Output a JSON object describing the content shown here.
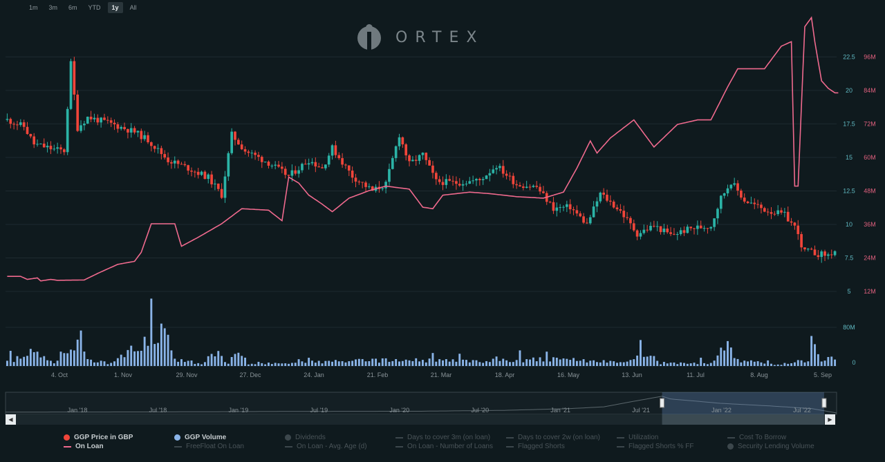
{
  "range_buttons": [
    "1m",
    "3m",
    "6m",
    "YTD",
    "1y",
    "All"
  ],
  "active_range": "1y",
  "logo_text": "ORTEX",
  "colors": {
    "up": "#2bb3a6",
    "down": "#f0453a",
    "on_loan": "#f06a8e",
    "volume": "#8ab4e8",
    "grid": "#1e2b30",
    "axis_left": "#5fb7c0",
    "axis_right": "#e0607e"
  },
  "chart_data": {
    "type": "line",
    "price_axis": {
      "ticks": [
        "5",
        "7.5",
        "10",
        "12.5",
        "15",
        "17.5",
        "20",
        "22.5"
      ],
      "ylim": [
        5,
        22.5
      ]
    },
    "on_loan_axis": {
      "ticks": [
        "12M",
        "24M",
        "36M",
        "48M",
        "60M",
        "72M",
        "84M",
        "96M"
      ],
      "ylim": [
        12000000,
        96000000
      ]
    },
    "volume_axis": {
      "ticks": [
        "0",
        "80M"
      ],
      "ylim": [
        0,
        80000000
      ]
    },
    "x_ticks": [
      "4. Oct",
      "1. Nov",
      "29. Nov",
      "27. Dec",
      "24. Jan",
      "21. Feb",
      "21. Mar",
      "18. Apr",
      "16. May",
      "13. Jun",
      "11. Jul",
      "8. Aug",
      "5. Sep"
    ],
    "navigator_ticks": [
      "Jan '18",
      "Jul '18",
      "Jan '19",
      "Jul '19",
      "Jan '20",
      "Jul '20",
      "Jan '21",
      "Jul '21",
      "Jan '22",
      "Jul '22"
    ],
    "price_waypoints": [
      [
        0,
        17.8
      ],
      [
        5,
        17.3
      ],
      [
        8,
        16.0
      ],
      [
        14,
        15.6
      ],
      [
        17,
        15.5
      ],
      [
        19,
        22.0
      ],
      [
        21,
        17.2
      ],
      [
        24,
        18.0
      ],
      [
        30,
        17.6
      ],
      [
        38,
        16.9
      ],
      [
        42,
        16.3
      ],
      [
        48,
        14.8
      ],
      [
        54,
        14.2
      ],
      [
        60,
        13.5
      ],
      [
        64,
        12.2
      ],
      [
        67,
        16.7
      ],
      [
        71,
        15.5
      ],
      [
        78,
        14.6
      ],
      [
        84,
        13.6
      ],
      [
        90,
        14.8
      ],
      [
        94,
        14.2
      ],
      [
        97,
        15.7
      ],
      [
        103,
        13.6
      ],
      [
        109,
        12.5
      ],
      [
        113,
        13.0
      ],
      [
        117,
        16.7
      ],
      [
        120,
        14.5
      ],
      [
        124,
        15.2
      ],
      [
        128,
        13.2
      ],
      [
        134,
        13.1
      ],
      [
        141,
        13.3
      ],
      [
        146,
        14.4
      ],
      [
        152,
        13.0
      ],
      [
        158,
        12.8
      ],
      [
        163,
        11.2
      ],
      [
        168,
        11.3
      ],
      [
        173,
        10.0
      ],
      [
        177,
        12.3
      ],
      [
        183,
        11.0
      ],
      [
        188,
        9.3
      ],
      [
        193,
        9.9
      ],
      [
        198,
        9.2
      ],
      [
        204,
        9.7
      ],
      [
        210,
        9.9
      ],
      [
        213,
        12.0
      ],
      [
        216,
        13.2
      ],
      [
        220,
        11.8
      ],
      [
        226,
        11.1
      ],
      [
        232,
        10.7
      ],
      [
        236,
        9.5
      ],
      [
        237,
        8.1
      ],
      [
        242,
        7.8
      ],
      [
        245,
        7.7
      ],
      [
        247,
        8.0
      ]
    ],
    "volume_waypoints": [
      [
        0,
        8
      ],
      [
        8,
        28
      ],
      [
        14,
        6
      ],
      [
        20,
        36
      ],
      [
        22,
        55
      ],
      [
        24,
        14
      ],
      [
        30,
        6
      ],
      [
        48,
        70
      ],
      [
        50,
        14
      ],
      [
        58,
        5
      ],
      [
        62,
        28
      ],
      [
        66,
        5
      ],
      [
        69,
        30
      ],
      [
        72,
        4
      ],
      [
        100,
        10
      ],
      [
        117,
        12
      ],
      [
        140,
        10
      ],
      [
        160,
        14
      ],
      [
        185,
        8
      ],
      [
        193,
        30
      ],
      [
        195,
        5
      ],
      [
        210,
        6
      ],
      [
        215,
        48
      ],
      [
        217,
        12
      ],
      [
        230,
        3
      ],
      [
        239,
        10
      ],
      [
        240,
        92
      ],
      [
        242,
        24
      ],
      [
        244,
        4
      ],
      [
        247,
        14
      ]
    ],
    "on_loan_waypoints": [
      [
        0,
        17.0
      ],
      [
        4,
        17.0
      ],
      [
        6,
        16.0
      ],
      [
        9,
        16.5
      ],
      [
        10,
        15.5
      ],
      [
        13,
        16.0
      ],
      [
        15,
        15.7
      ],
      [
        23,
        15.8
      ],
      [
        27,
        18.0
      ],
      [
        33,
        21.0
      ],
      [
        38,
        22.0
      ],
      [
        40,
        25.0
      ],
      [
        43,
        34.5
      ],
      [
        50,
        34.5
      ],
      [
        52,
        27.0
      ],
      [
        57,
        30.0
      ],
      [
        64,
        34.5
      ],
      [
        70,
        39.5
      ],
      [
        78,
        39.0
      ],
      [
        82,
        35.5
      ],
      [
        84,
        50.0
      ],
      [
        87,
        48.0
      ],
      [
        90,
        44.0
      ],
      [
        94,
        41.0
      ],
      [
        97,
        38.5
      ],
      [
        102,
        43.0
      ],
      [
        108,
        45.5
      ],
      [
        113,
        47.0
      ],
      [
        120,
        46.0
      ],
      [
        124,
        40.0
      ],
      [
        127,
        39.5
      ],
      [
        130,
        44.0
      ],
      [
        138,
        45.0
      ],
      [
        144,
        44.5
      ],
      [
        152,
        43.5
      ],
      [
        160,
        43.0
      ],
      [
        166,
        45.0
      ],
      [
        170,
        53.0
      ],
      [
        174,
        62.0
      ],
      [
        176,
        58.0
      ],
      [
        180,
        63.0
      ],
      [
        187,
        69.0
      ],
      [
        193,
        60.0
      ],
      [
        200,
        67.5
      ],
      [
        206,
        69.0
      ],
      [
        210,
        69.0
      ],
      [
        215,
        80.0
      ],
      [
        218,
        86.0
      ],
      [
        226,
        86.0
      ],
      [
        231,
        93.5
      ],
      [
        234,
        95.0
      ],
      [
        235,
        47.0
      ],
      [
        236,
        47.0
      ],
      [
        238,
        100.0
      ],
      [
        240,
        103.0
      ],
      [
        241,
        95.0
      ],
      [
        243,
        82.0
      ],
      [
        245,
        79.5
      ],
      [
        247,
        78.0
      ]
    ],
    "navigator_waypoints": [
      [
        0,
        9.0
      ],
      [
        0.18,
        9.2
      ],
      [
        0.36,
        9.8
      ],
      [
        0.5,
        10.0
      ],
      [
        0.6,
        11.0
      ],
      [
        0.68,
        13.0
      ],
      [
        0.72,
        15.0
      ],
      [
        0.76,
        22.0
      ],
      [
        0.79,
        27.0
      ],
      [
        0.8,
        24.0
      ],
      [
        0.86,
        19.0
      ],
      [
        0.92,
        16.0
      ],
      [
        0.97,
        13.0
      ],
      [
        1.0,
        8.0
      ]
    ],
    "navigator_selection": [
      0.79,
      0.985
    ]
  },
  "legend": [
    {
      "label": "GGP Price in GBP",
      "marker": "dot",
      "color": "#f0453a",
      "active": true
    },
    {
      "label": "On Loan",
      "marker": "dash",
      "color": "#f06a8e",
      "active": true
    },
    {
      "label": "GGP Volume",
      "marker": "dot",
      "color": "#8ab4e8",
      "active": true
    },
    {
      "label": "FreeFloat On Loan",
      "marker": "dash",
      "color": "#3c474c",
      "active": false
    },
    {
      "label": "Dividends",
      "marker": "dot",
      "color": "#3c474c",
      "active": false
    },
    {
      "label": "On Loan - Avg. Age (d)",
      "marker": "dash",
      "color": "#3c474c",
      "active": false
    },
    {
      "label": "Days to cover 3m (on loan)",
      "marker": "dash",
      "color": "#3c474c",
      "active": false
    },
    {
      "label": "On Loan - Number of Loans",
      "marker": "dash",
      "color": "#3c474c",
      "active": false
    },
    {
      "label": "Days to cover 2w (on loan)",
      "marker": "dash",
      "color": "#3c474c",
      "active": false
    },
    {
      "label": "Flagged Shorts",
      "marker": "dash",
      "color": "#3c474c",
      "active": false
    },
    {
      "label": "Utilization",
      "marker": "dash",
      "color": "#3c474c",
      "active": false
    },
    {
      "label": "Flagged Shorts % FF",
      "marker": "dash",
      "color": "#3c474c",
      "active": false
    },
    {
      "label": "Cost To Borrow",
      "marker": "dash",
      "color": "#3c474c",
      "active": false
    },
    {
      "label": "Security Lending Volume",
      "marker": "dot",
      "color": "#3c474c",
      "active": false
    }
  ]
}
